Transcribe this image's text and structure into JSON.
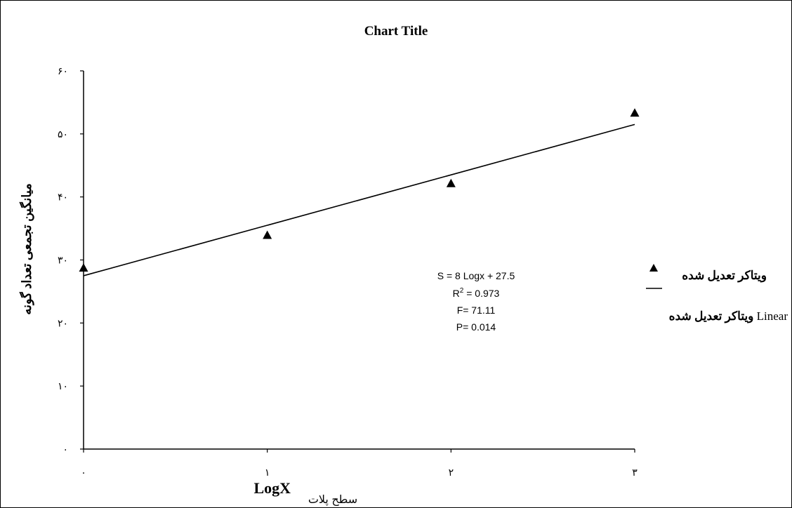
{
  "chart_data": {
    "type": "scatter",
    "title": "Chart Title",
    "xlabel": {
      "latin": "LogX",
      "persian": "سطح پلات"
    },
    "ylabel": "میانگین تجمعی تعداد گونه",
    "xlim": [
      0,
      3
    ],
    "ylim": [
      0,
      60
    ],
    "x_ticks": [
      0,
      1,
      2,
      3
    ],
    "x_tick_labels": [
      "۰",
      "۱",
      "۲",
      "۳"
    ],
    "y_ticks": [
      0,
      10,
      20,
      30,
      40,
      50,
      60
    ],
    "y_tick_labels": [
      "۰",
      "۱۰",
      "۲۰",
      "۳۰",
      "۴۰",
      "۵۰",
      "۶۰"
    ],
    "grid": false,
    "legend_position": "right",
    "series": [
      {
        "name": "ویتاکر تعدیل شده",
        "marker": "triangle",
        "color": "#000000",
        "points": [
          {
            "x": 0,
            "y": 28.7
          },
          {
            "x": 1,
            "y": 33.9
          },
          {
            "x": 2,
            "y": 42.1
          },
          {
            "x": 3,
            "y": 53.3
          }
        ]
      },
      {
        "name": "Linear ویتاکر تعدیل شده",
        "type": "line",
        "color": "#000000",
        "slope": 8,
        "intercept": 27.5,
        "x_range": [
          0,
          3
        ]
      }
    ],
    "annotations": [
      "S = 8 Logx + 27.5",
      "R2 = 0.973",
      "F= 71.11",
      "P= 0.014"
    ]
  }
}
